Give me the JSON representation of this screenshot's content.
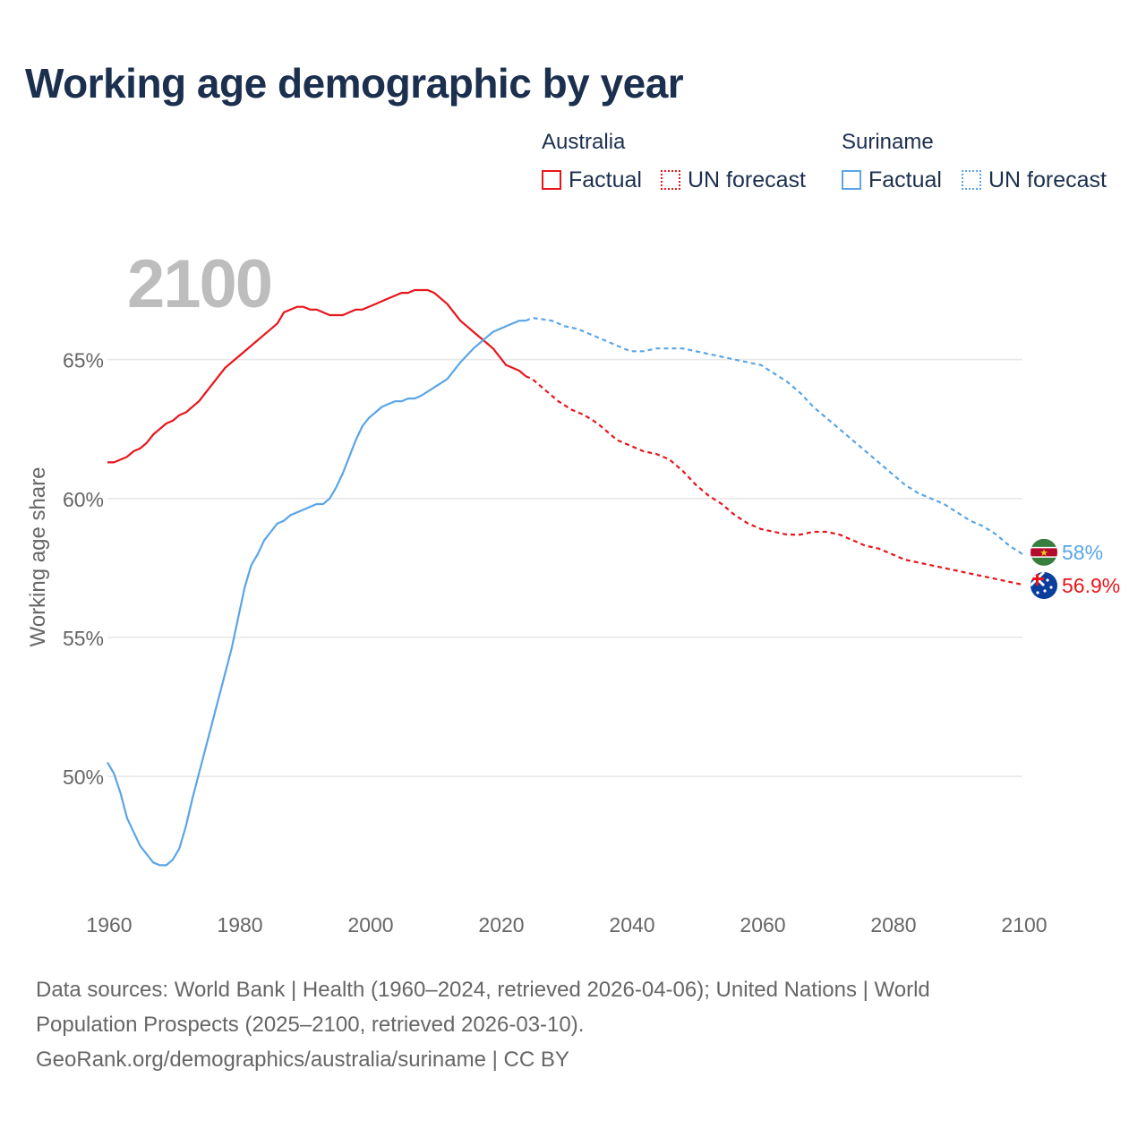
{
  "title": "Working age demographic by year",
  "legend": {
    "groups": [
      {
        "name": "Australia",
        "factual_label": "Factual",
        "forecast_label": "UN forecast",
        "color": "#e8151b"
      },
      {
        "name": "Suriname",
        "factual_label": "Factual",
        "forecast_label": "UN forecast",
        "color": "#5aa5e6"
      }
    ]
  },
  "year_watermark": "2100",
  "footer": {
    "line1": "Data sources: World Bank | Health (1960–2024, retrieved 2026-04-06); United Nations | World",
    "line2": "Population Prospects (2025–2100, retrieved 2026-03-10).",
    "line3": "GeoRank.org/demographics/australia/suriname | CC BY"
  },
  "chart_data": {
    "type": "line",
    "title": "Working age demographic by year",
    "xlabel": "",
    "ylabel": "Working age share",
    "xlim": [
      1960,
      2100
    ],
    "ylim": [
      45.3,
      68.5
    ],
    "x_ticks": [
      1960,
      1980,
      2000,
      2020,
      2040,
      2060,
      2080,
      2100
    ],
    "x_tick_labels": [
      "1960",
      "1980",
      "2000",
      "2020",
      "2040",
      "2060",
      "2080",
      "2100"
    ],
    "y_ticks": [
      50,
      55,
      60,
      65
    ],
    "y_tick_labels": [
      "50%",
      "55%",
      "60%",
      "65%"
    ],
    "grid": true,
    "factual_range": [
      1960,
      2024
    ],
    "forecast_range": [
      2024,
      2100
    ],
    "series": [
      {
        "name": "Australia",
        "color": "#e8151b",
        "end_label": "56.9%",
        "flag": "australia-flag",
        "points": [
          [
            1960,
            61.3
          ],
          [
            1961,
            61.3
          ],
          [
            1963,
            61.5
          ],
          [
            1964,
            61.7
          ],
          [
            1965,
            61.8
          ],
          [
            1966,
            62.0
          ],
          [
            1967,
            62.3
          ],
          [
            1968,
            62.5
          ],
          [
            1969,
            62.7
          ],
          [
            1970,
            62.8
          ],
          [
            1971,
            63.0
          ],
          [
            1972,
            63.1
          ],
          [
            1974,
            63.5
          ],
          [
            1976,
            64.1
          ],
          [
            1978,
            64.7
          ],
          [
            1980,
            65.1
          ],
          [
            1982,
            65.5
          ],
          [
            1984,
            65.9
          ],
          [
            1986,
            66.3
          ],
          [
            1987,
            66.7
          ],
          [
            1989,
            66.9
          ],
          [
            1990,
            66.9
          ],
          [
            1991,
            66.8
          ],
          [
            1992,
            66.8
          ],
          [
            1994,
            66.6
          ],
          [
            1996,
            66.6
          ],
          [
            1998,
            66.8
          ],
          [
            1999,
            66.8
          ],
          [
            2001,
            67.0
          ],
          [
            2003,
            67.2
          ],
          [
            2005,
            67.4
          ],
          [
            2006,
            67.4
          ],
          [
            2007,
            67.5
          ],
          [
            2009,
            67.5
          ],
          [
            2010,
            67.4
          ],
          [
            2012,
            67.0
          ],
          [
            2014,
            66.4
          ],
          [
            2016,
            66.0
          ],
          [
            2018,
            65.6
          ],
          [
            2019,
            65.4
          ],
          [
            2021,
            64.8
          ],
          [
            2023,
            64.6
          ],
          [
            2024,
            64.4
          ],
          [
            2025,
            64.3
          ],
          [
            2027,
            63.9
          ],
          [
            2029,
            63.5
          ],
          [
            2031,
            63.2
          ],
          [
            2033,
            63.0
          ],
          [
            2035,
            62.7
          ],
          [
            2037,
            62.3
          ],
          [
            2038,
            62.1
          ],
          [
            2040,
            61.9
          ],
          [
            2042,
            61.7
          ],
          [
            2044,
            61.6
          ],
          [
            2046,
            61.4
          ],
          [
            2048,
            61.0
          ],
          [
            2050,
            60.5
          ],
          [
            2052,
            60.1
          ],
          [
            2054,
            59.8
          ],
          [
            2056,
            59.4
          ],
          [
            2058,
            59.1
          ],
          [
            2060,
            58.9
          ],
          [
            2062,
            58.8
          ],
          [
            2064,
            58.7
          ],
          [
            2066,
            58.7
          ],
          [
            2068,
            58.8
          ],
          [
            2070,
            58.8
          ],
          [
            2072,
            58.7
          ],
          [
            2074,
            58.5
          ],
          [
            2076,
            58.3
          ],
          [
            2078,
            58.2
          ],
          [
            2080,
            58.0
          ],
          [
            2082,
            57.8
          ],
          [
            2084,
            57.7
          ],
          [
            2086,
            57.6
          ],
          [
            2088,
            57.5
          ],
          [
            2090,
            57.4
          ],
          [
            2092,
            57.3
          ],
          [
            2094,
            57.2
          ],
          [
            2096,
            57.1
          ],
          [
            2098,
            57.0
          ],
          [
            2100,
            56.9
          ]
        ]
      },
      {
        "name": "Suriname",
        "color": "#5aa5e6",
        "end_label": "58%",
        "flag": "suriname-flag",
        "points": [
          [
            1960,
            50.5
          ],
          [
            1961,
            50.1
          ],
          [
            1962,
            49.4
          ],
          [
            1963,
            48.5
          ],
          [
            1964,
            48.0
          ],
          [
            1965,
            47.5
          ],
          [
            1966,
            47.2
          ],
          [
            1967,
            46.9
          ],
          [
            1968,
            46.8
          ],
          [
            1969,
            46.8
          ],
          [
            1970,
            47.0
          ],
          [
            1971,
            47.4
          ],
          [
            1972,
            48.2
          ],
          [
            1973,
            49.2
          ],
          [
            1974,
            50.1
          ],
          [
            1975,
            51.0
          ],
          [
            1976,
            51.9
          ],
          [
            1977,
            52.8
          ],
          [
            1978,
            53.7
          ],
          [
            1979,
            54.6
          ],
          [
            1980,
            55.7
          ],
          [
            1981,
            56.8
          ],
          [
            1982,
            57.6
          ],
          [
            1983,
            58.0
          ],
          [
            1984,
            58.5
          ],
          [
            1985,
            58.8
          ],
          [
            1986,
            59.1
          ],
          [
            1987,
            59.2
          ],
          [
            1988,
            59.4
          ],
          [
            1989,
            59.5
          ],
          [
            1990,
            59.6
          ],
          [
            1991,
            59.7
          ],
          [
            1992,
            59.8
          ],
          [
            1993,
            59.8
          ],
          [
            1994,
            60.0
          ],
          [
            1995,
            60.4
          ],
          [
            1996,
            60.9
          ],
          [
            1997,
            61.5
          ],
          [
            1998,
            62.1
          ],
          [
            1999,
            62.6
          ],
          [
            2000,
            62.9
          ],
          [
            2001,
            63.1
          ],
          [
            2002,
            63.3
          ],
          [
            2003,
            63.4
          ],
          [
            2004,
            63.5
          ],
          [
            2005,
            63.5
          ],
          [
            2006,
            63.6
          ],
          [
            2007,
            63.6
          ],
          [
            2008,
            63.7
          ],
          [
            2010,
            64.0
          ],
          [
            2012,
            64.3
          ],
          [
            2014,
            64.9
          ],
          [
            2016,
            65.4
          ],
          [
            2018,
            65.8
          ],
          [
            2019,
            66.0
          ],
          [
            2020,
            66.1
          ],
          [
            2022,
            66.3
          ],
          [
            2023,
            66.4
          ],
          [
            2024,
            66.4
          ],
          [
            2025,
            66.5
          ],
          [
            2028,
            66.4
          ],
          [
            2030,
            66.2
          ],
          [
            2032,
            66.1
          ],
          [
            2034,
            65.9
          ],
          [
            2036,
            65.7
          ],
          [
            2038,
            65.5
          ],
          [
            2040,
            65.3
          ],
          [
            2042,
            65.3
          ],
          [
            2044,
            65.4
          ],
          [
            2046,
            65.4
          ],
          [
            2048,
            65.4
          ],
          [
            2050,
            65.3
          ],
          [
            2052,
            65.2
          ],
          [
            2054,
            65.1
          ],
          [
            2056,
            65.0
          ],
          [
            2058,
            64.9
          ],
          [
            2060,
            64.8
          ],
          [
            2062,
            64.5
          ],
          [
            2064,
            64.2
          ],
          [
            2066,
            63.8
          ],
          [
            2068,
            63.3
          ],
          [
            2070,
            62.9
          ],
          [
            2072,
            62.5
          ],
          [
            2074,
            62.1
          ],
          [
            2076,
            61.7
          ],
          [
            2078,
            61.3
          ],
          [
            2080,
            60.9
          ],
          [
            2082,
            60.5
          ],
          [
            2084,
            60.2
          ],
          [
            2086,
            60.0
          ],
          [
            2088,
            59.8
          ],
          [
            2090,
            59.5
          ],
          [
            2092,
            59.2
          ],
          [
            2094,
            59.0
          ],
          [
            2096,
            58.7
          ],
          [
            2098,
            58.3
          ],
          [
            2100,
            58.0
          ]
        ]
      }
    ]
  }
}
